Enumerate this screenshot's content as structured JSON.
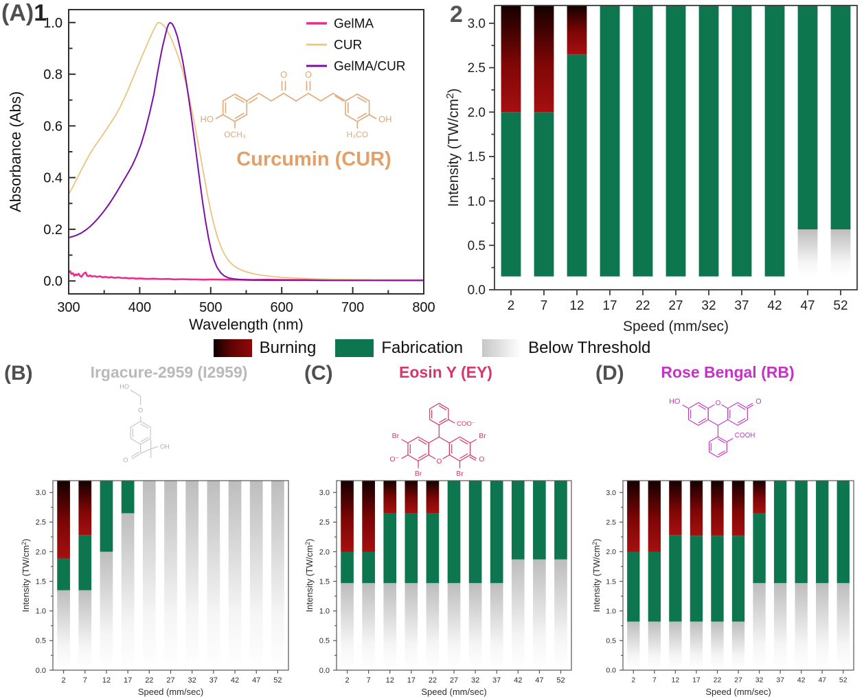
{
  "panels": {
    "a1": {
      "prefix": "(A)",
      "number": "1"
    },
    "a2": {
      "label": "2"
    },
    "b": {
      "label": "(B)",
      "title": "Irgacure-2959 (I2959)"
    },
    "c": {
      "label": "(C)",
      "title": "Eosin Y (EY)"
    },
    "d": {
      "label": "(D)",
      "title": "Rose Bengal (RB)"
    }
  },
  "legend": {
    "items": [
      {
        "label": "Burning",
        "swatch": "burning"
      },
      {
        "label": "Fabrication",
        "swatch": "fabrication"
      },
      {
        "label": "Below Threshold",
        "swatch": "below-threshold"
      }
    ]
  },
  "colors": {
    "gelma_pink": "#ED2B8D",
    "cur_tan": "#E9C47F",
    "gelma_cur_purple": "#7B0FA3",
    "fabrication_green": "#0E764E",
    "burning_red": "#A51010",
    "burning_black": "#150000",
    "below_gray": "#BDBDBD",
    "curcumin_structure": "#DFA878",
    "i2959_gray": "#C6C6C6",
    "eosin_pink": "#D6366E",
    "rose_bengal_magenta": "#C433C4",
    "panel_letter_gray": "#4F4F4F"
  },
  "structures": {
    "curcumin": {
      "title": "Curcumin (CUR)",
      "labels": [
        "HO",
        "OCH₃",
        "H₃CO",
        "OH",
        "O",
        "O"
      ]
    },
    "i2959": {
      "labels": [
        "HO",
        "O",
        "O",
        "OH"
      ]
    },
    "eosin": {
      "labels": [
        "COO⁻",
        "Br",
        "Br",
        "O⁻",
        "O",
        "Br",
        "Br"
      ]
    },
    "rose_bengal": {
      "labels": [
        "HO",
        "O",
        "O",
        "COOH"
      ]
    }
  },
  "chart_data": [
    {
      "id": "absorbance",
      "panel_ref": "(A)1",
      "type": "line",
      "title": "",
      "xlabel": "Wavelength (nm)",
      "ylabel": "Absorbance (Abs)",
      "xlim": [
        300,
        800
      ],
      "ylim": [
        -0.05,
        1.05
      ],
      "xticks": [
        300,
        400,
        500,
        600,
        700,
        800
      ],
      "yticks": [
        0.0,
        0.2,
        0.4,
        0.6,
        0.8,
        1.0
      ],
      "legend_position": "top-right",
      "grid": false,
      "series": [
        {
          "name": "GelMA",
          "color": "#ED2B8D",
          "width": 2.6,
          "points": [
            [
              300,
              0.032
            ],
            [
              302,
              0.038
            ],
            [
              304,
              0.027
            ],
            [
              306,
              0.03
            ],
            [
              308,
              0.02
            ],
            [
              310,
              0.026
            ],
            [
              312,
              0.022
            ],
            [
              314,
              0.028
            ],
            [
              316,
              0.02
            ],
            [
              318,
              0.016
            ],
            [
              320,
              0.024
            ],
            [
              322,
              0.03
            ],
            [
              324,
              0.033
            ],
            [
              326,
              0.02
            ],
            [
              328,
              0.018
            ],
            [
              330,
              0.022
            ],
            [
              333,
              0.017
            ],
            [
              336,
              0.019
            ],
            [
              340,
              0.016
            ],
            [
              344,
              0.018
            ],
            [
              348,
              0.014
            ],
            [
              352,
              0.016
            ],
            [
              356,
              0.013
            ],
            [
              360,
              0.015
            ],
            [
              365,
              0.012
            ],
            [
              370,
              0.014
            ],
            [
              375,
              0.011
            ],
            [
              380,
              0.012
            ],
            [
              385,
              0.01
            ],
            [
              390,
              0.011
            ],
            [
              395,
              0.009
            ],
            [
              400,
              0.01
            ],
            [
              410,
              0.008
            ],
            [
              420,
              0.009
            ],
            [
              430,
              0.007
            ],
            [
              440,
              0.008
            ],
            [
              450,
              0.006
            ],
            [
              460,
              0.007
            ],
            [
              470,
              0.006
            ],
            [
              480,
              0.006
            ],
            [
              490,
              0.005
            ],
            [
              500,
              0.006
            ],
            [
              520,
              0.005
            ],
            [
              540,
              0.005
            ],
            [
              560,
              0.004
            ],
            [
              580,
              0.005
            ],
            [
              600,
              0.004
            ],
            [
              620,
              0.004
            ],
            [
              640,
              0.004
            ],
            [
              660,
              0.003
            ],
            [
              680,
              0.004
            ],
            [
              700,
              0.003
            ],
            [
              720,
              0.004
            ],
            [
              740,
              0.003
            ],
            [
              760,
              0.003
            ],
            [
              780,
              0.003
            ],
            [
              800,
              0.003
            ]
          ]
        },
        {
          "name": "CUR",
          "color": "#E9C47F",
          "width": 1.8,
          "points": [
            [
              300,
              0.335
            ],
            [
              306,
              0.365
            ],
            [
              312,
              0.398
            ],
            [
              318,
              0.43
            ],
            [
              324,
              0.462
            ],
            [
              330,
              0.492
            ],
            [
              336,
              0.518
            ],
            [
              342,
              0.542
            ],
            [
              348,
              0.565
            ],
            [
              354,
              0.59
            ],
            [
              360,
              0.615
            ],
            [
              366,
              0.64
            ],
            [
              372,
              0.67
            ],
            [
              378,
              0.705
            ],
            [
              384,
              0.742
            ],
            [
              390,
              0.782
            ],
            [
              396,
              0.822
            ],
            [
              402,
              0.862
            ],
            [
              408,
              0.9
            ],
            [
              414,
              0.938
            ],
            [
              419,
              0.968
            ],
            [
              423,
              0.99
            ],
            [
              426,
              1.0
            ],
            [
              430,
              0.997
            ],
            [
              434,
              0.988
            ],
            [
              438,
              0.972
            ],
            [
              442,
              0.952
            ],
            [
              446,
              0.928
            ],
            [
              450,
              0.9
            ],
            [
              455,
              0.862
            ],
            [
              460,
              0.818
            ],
            [
              465,
              0.765
            ],
            [
              470,
              0.705
            ],
            [
              475,
              0.64
            ],
            [
              480,
              0.568
            ],
            [
              485,
              0.492
            ],
            [
              490,
              0.415
            ],
            [
              495,
              0.34
            ],
            [
              500,
              0.272
            ],
            [
              505,
              0.213
            ],
            [
              510,
              0.165
            ],
            [
              515,
              0.128
            ],
            [
              520,
              0.1
            ],
            [
              526,
              0.076
            ],
            [
              532,
              0.06
            ],
            [
              538,
              0.049
            ],
            [
              546,
              0.039
            ],
            [
              554,
              0.032
            ],
            [
              562,
              0.027
            ],
            [
              572,
              0.022
            ],
            [
              584,
              0.018
            ],
            [
              600,
              0.014
            ],
            [
              620,
              0.011
            ],
            [
              640,
              0.009
            ],
            [
              660,
              0.007
            ],
            [
              690,
              0.006
            ],
            [
              720,
              0.005
            ],
            [
              760,
              0.004
            ],
            [
              800,
              0.004
            ]
          ]
        },
        {
          "name": "GelMA/CUR",
          "color": "#7B0FA3",
          "width": 2.0,
          "points": [
            [
              300,
              0.168
            ],
            [
              306,
              0.172
            ],
            [
              312,
              0.178
            ],
            [
              318,
              0.186
            ],
            [
              324,
              0.197
            ],
            [
              330,
              0.21
            ],
            [
              336,
              0.226
            ],
            [
              342,
              0.244
            ],
            [
              348,
              0.264
            ],
            [
              354,
              0.286
            ],
            [
              360,
              0.31
            ],
            [
              366,
              0.336
            ],
            [
              372,
              0.364
            ],
            [
              378,
              0.392
            ],
            [
              384,
              0.42
            ],
            [
              390,
              0.45
            ],
            [
              396,
              0.487
            ],
            [
              402,
              0.53
            ],
            [
              408,
              0.585
            ],
            [
              414,
              0.65
            ],
            [
              420,
              0.722
            ],
            [
              424,
              0.788
            ],
            [
              428,
              0.85
            ],
            [
              432,
              0.905
            ],
            [
              436,
              0.95
            ],
            [
              439,
              0.982
            ],
            [
              441,
              0.995
            ],
            [
              443,
              1.0
            ],
            [
              446,
              0.994
            ],
            [
              449,
              0.978
            ],
            [
              453,
              0.946
            ],
            [
              457,
              0.9
            ],
            [
              461,
              0.845
            ],
            [
              465,
              0.78
            ],
            [
              469,
              0.708
            ],
            [
              473,
              0.63
            ],
            [
              477,
              0.548
            ],
            [
              481,
              0.462
            ],
            [
              485,
              0.378
            ],
            [
              489,
              0.298
            ],
            [
              493,
              0.226
            ],
            [
              497,
              0.165
            ],
            [
              501,
              0.115
            ],
            [
              505,
              0.078
            ],
            [
              509,
              0.052
            ],
            [
              514,
              0.032
            ],
            [
              519,
              0.02
            ],
            [
              525,
              0.012
            ],
            [
              533,
              0.008
            ],
            [
              543,
              0.005
            ],
            [
              558,
              0.004
            ],
            [
              580,
              0.003
            ],
            [
              620,
              0.003
            ],
            [
              680,
              0.002
            ],
            [
              740,
              0.002
            ],
            [
              800,
              0.002
            ]
          ]
        }
      ]
    },
    {
      "id": "cur-bars",
      "panel_ref": "(A)2",
      "type": "stacked-bar",
      "xlabel": "Speed (mm/sec)",
      "ylabel_parts": [
        "Intensity (TW/cm",
        "2",
        ")"
      ],
      "categories": [
        2,
        7,
        12,
        17,
        22,
        27,
        32,
        37,
        42,
        47,
        52
      ],
      "ylim": [
        0,
        3.2
      ],
      "yticks": [
        0.0,
        0.5,
        1.0,
        1.5,
        2.0,
        2.5,
        3.0
      ],
      "top": 3.2,
      "bar_bottom": 0.15,
      "below_top": [
        0.15,
        0.15,
        0.15,
        0.15,
        0.15,
        0.15,
        0.15,
        0.15,
        0.15,
        0.68,
        0.68
      ],
      "fab_top": [
        2.0,
        2.0,
        2.65,
        3.2,
        3.2,
        3.2,
        3.2,
        3.2,
        3.2,
        3.2,
        3.2
      ],
      "segment_names": [
        "Below Threshold",
        "Fabrication",
        "Burning"
      ]
    },
    {
      "id": "i2959-bars",
      "panel_ref": "(B)",
      "type": "stacked-bar",
      "xlabel": "Speed (mm/sec)",
      "ylabel_parts": [
        "Intensity (TW/cm",
        "2",
        ")"
      ],
      "categories": [
        2,
        7,
        12,
        17,
        22,
        27,
        32,
        37,
        42,
        47,
        52
      ],
      "ylim": [
        0,
        3.2
      ],
      "yticks": [
        0.0,
        0.5,
        1.0,
        1.5,
        2.0,
        2.5,
        3.0
      ],
      "top": 3.2,
      "bar_bottom": 0,
      "below_top": [
        1.35,
        1.35,
        2.0,
        2.65,
        3.2,
        3.2,
        3.2,
        3.2,
        3.2,
        3.2,
        3.2
      ],
      "fab_top": [
        1.88,
        2.28,
        3.2,
        3.2,
        3.2,
        3.2,
        3.2,
        3.2,
        3.2,
        3.2,
        3.2
      ],
      "segment_names": [
        "Below Threshold",
        "Fabrication",
        "Burning"
      ]
    },
    {
      "id": "eosin-bars",
      "panel_ref": "(C)",
      "type": "stacked-bar",
      "xlabel": "Speed (mm/sec)",
      "ylabel_parts": [
        "Intensity (TW/cm",
        "2",
        ")"
      ],
      "categories": [
        2,
        7,
        12,
        17,
        22,
        27,
        32,
        37,
        42,
        47,
        52
      ],
      "ylim": [
        0,
        3.2
      ],
      "yticks": [
        0.0,
        0.5,
        1.0,
        1.5,
        2.0,
        2.5,
        3.0
      ],
      "top": 3.2,
      "bar_bottom": 0,
      "below_top": [
        1.47,
        1.47,
        1.47,
        1.47,
        1.47,
        1.47,
        1.47,
        1.47,
        1.87,
        1.87,
        1.87
      ],
      "fab_top": [
        2.0,
        2.0,
        2.65,
        2.65,
        2.65,
        3.2,
        3.2,
        3.2,
        3.2,
        3.2,
        3.2
      ],
      "segment_names": [
        "Below Threshold",
        "Fabrication",
        "Burning"
      ]
    },
    {
      "id": "rb-bars",
      "panel_ref": "(D)",
      "type": "stacked-bar",
      "xlabel": "Speed (mm/sec)",
      "ylabel_parts": [
        "Intensity (TW/cm",
        "2",
        ")"
      ],
      "categories": [
        2,
        7,
        12,
        17,
        22,
        27,
        32,
        37,
        42,
        47,
        52
      ],
      "ylim": [
        0,
        3.2
      ],
      "yticks": [
        0.0,
        0.5,
        1.0,
        1.5,
        2.0,
        2.5,
        3.0
      ],
      "top": 3.2,
      "bar_bottom": 0,
      "below_top": [
        0.82,
        0.82,
        0.82,
        0.82,
        0.82,
        0.82,
        1.47,
        1.47,
        1.47,
        1.47,
        1.47
      ],
      "fab_top": [
        2.0,
        2.0,
        2.28,
        2.27,
        2.27,
        2.27,
        2.65,
        3.2,
        3.2,
        3.2,
        3.2
      ],
      "segment_names": [
        "Below Threshold",
        "Fabrication",
        "Burning"
      ]
    }
  ]
}
